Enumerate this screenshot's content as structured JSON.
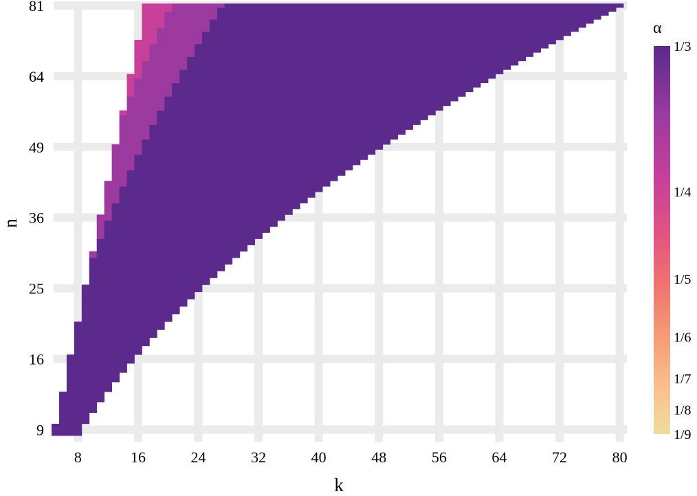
{
  "chart_data": {
    "type": "heatmap",
    "xlabel": "k",
    "ylabel": "n",
    "colorbar_title": "α",
    "x_ticks": [
      "8",
      "16",
      "24",
      "32",
      "40",
      "48",
      "56",
      "64",
      "72",
      "80"
    ],
    "x_tick_values": [
      8,
      16,
      24,
      32,
      40,
      48,
      56,
      64,
      72,
      80
    ],
    "y_ticks": [
      "9",
      "16",
      "25",
      "36",
      "49",
      "64",
      "81"
    ],
    "y_tick_values": [
      9,
      16,
      25,
      36,
      49,
      64,
      81
    ],
    "xlim": [
      5.5,
      81.5
    ],
    "y_scale": "sqrt",
    "n_values": [
      9,
      16,
      25,
      36,
      49,
      64,
      81
    ],
    "rule": "cells exist for 2*sqrt(n) - 1 <= k <= n - 1 (integer k); alpha = 1/m, m = floor(n / k) + 1 clipped to [3, 9]",
    "colorbar_ticks": [
      "1/3",
      "1/4",
      "1/5",
      "1/6",
      "1/7",
      "1/8",
      "1/9"
    ],
    "colorbar_values": [
      0.3333,
      0.25,
      0.2,
      0.1667,
      0.1429,
      0.125,
      0.1111
    ],
    "colorbar_range": [
      0.1111,
      0.3333
    ],
    "color_scale": {
      "3": "#5b2a8c",
      "4": "#9c3aa0",
      "5": "#c8409a",
      "6": "#e5577f",
      "7": "#f07471",
      "8": "#f69c75",
      "9": "#f9c08d",
      "10": "#f0dc9f"
    },
    "grid": true
  },
  "colors": {
    "background": "#ffffff",
    "gridline": "#ebebeb",
    "text": "#000000"
  }
}
